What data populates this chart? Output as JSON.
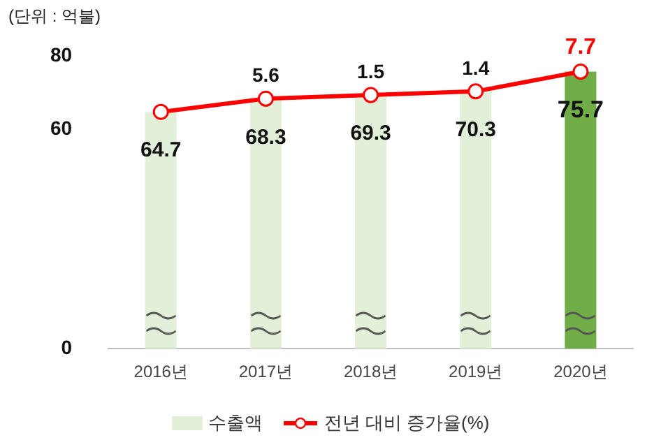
{
  "chart_data": {
    "type": "bar",
    "annotations": [
      "(단위 : 억불)",
      {
        "text": "5.6",
        "x": "2017년",
        "y": 68.3
      },
      {
        "text": "1.5",
        "x": "2018년",
        "y": 69.3
      },
      {
        "text": "1.4",
        "x": "2019년",
        "y": 70.3
      },
      {
        "text": "7.7",
        "x": "2020년",
        "y": 75.7
      }
    ],
    "categories": [
      "2016년",
      "2017년",
      "2018년",
      "2019년",
      "2020년"
    ],
    "series": [
      {
        "name": "수출액",
        "color": "#e2efd9",
        "colors": [
          "#e2efd9",
          "#e2efd9",
          "#e2efd9",
          "#e2efd9",
          "#70ad47"
        ],
        "values": [
          64.7,
          68.3,
          69.3,
          70.3,
          75.7
        ],
        "value_labels": [
          "64.7",
          "68.3",
          "69.3",
          "70.3",
          "75.7"
        ]
      },
      {
        "name": "전년 대비 증가율(%)",
        "type": "line",
        "color": "#ff0000",
        "values": [
          64.7,
          68.3,
          69.3,
          70.3,
          75.7
        ]
      }
    ],
    "ylim": [
      0,
      80
    ],
    "yticks": [
      0,
      60,
      80
    ],
    "grid": false,
    "legend": "bottom",
    "marker": "circle",
    "line_style": "solid"
  }
}
